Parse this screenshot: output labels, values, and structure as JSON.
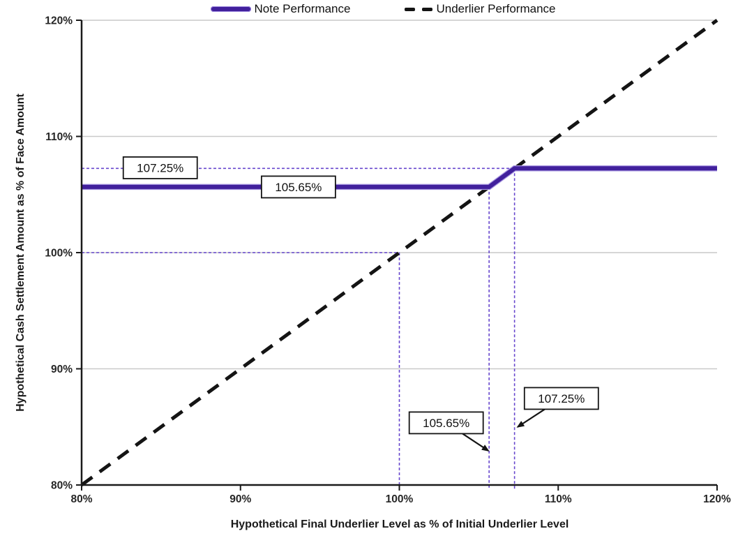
{
  "legend": {
    "items": [
      {
        "label": "Note Performance",
        "color": "#41209c",
        "style": "solid"
      },
      {
        "label": "Underlier Performance",
        "color": "#141414",
        "style": "dashed"
      }
    ]
  },
  "chart_data": {
    "type": "line",
    "title": "",
    "xlabel": "Hypothetical Final Underlier Level as % of Initial Underlier Level",
    "ylabel": "Hypothetical Cash Settlement Amount as % of Face Amount",
    "xlim": [
      80,
      120
    ],
    "ylim": [
      80,
      120
    ],
    "grid": "horizontal-only",
    "legend_position": "top",
    "grid_color": "#c9c9c9",
    "axis_color": "#1a1a1a",
    "reference_color": "#6746cd",
    "x_ticks": [
      {
        "value": 80,
        "label": "80%"
      },
      {
        "value": 90,
        "label": "90%"
      },
      {
        "value": 100,
        "label": "100%"
      },
      {
        "value": 110,
        "label": "110%"
      },
      {
        "value": 120,
        "label": "120%"
      }
    ],
    "y_ticks": [
      {
        "value": 80,
        "label": "80%"
      },
      {
        "value": 90,
        "label": "90%"
      },
      {
        "value": 100,
        "label": "100%"
      },
      {
        "value": 110,
        "label": "110%"
      },
      {
        "value": 120,
        "label": "120%"
      }
    ],
    "series": [
      {
        "name": "Note Performance",
        "color": "#41209c",
        "line_style": "solid",
        "width": 6,
        "points": [
          [
            80,
            105.65
          ],
          [
            105.65,
            105.65
          ],
          [
            107.25,
            107.25
          ],
          [
            120,
            107.25
          ]
        ]
      },
      {
        "name": "Underlier Performance",
        "color": "#141414",
        "line_style": "dashed",
        "width": 5,
        "points": [
          [
            80,
            80
          ],
          [
            120,
            120
          ]
        ]
      }
    ],
    "reference_lines": [
      {
        "orientation": "horizontal",
        "value": 107.25,
        "from": 80,
        "to": 107.25
      },
      {
        "orientation": "horizontal",
        "value": 100,
        "from": 80,
        "to": 100
      },
      {
        "orientation": "vertical",
        "value": 100,
        "from": 80,
        "to": 100
      },
      {
        "orientation": "vertical",
        "value": 105.65,
        "from": 80,
        "to": 105.65
      },
      {
        "orientation": "vertical",
        "value": 107.25,
        "from": 80,
        "to": 107.25
      }
    ],
    "annotations": [
      {
        "text": "107.25%",
        "x": 84.95,
        "y": 107.3
      },
      {
        "text": "105.65%",
        "x": 93.65,
        "y": 105.65
      },
      {
        "text": "105.65%",
        "x": 102.95,
        "y": 85.35,
        "arrow_to": {
          "x": 105.6,
          "y": 82.95
        }
      },
      {
        "text": "107.25%",
        "x": 110.2,
        "y": 87.45,
        "arrow_to": {
          "x": 107.45,
          "y": 85.0
        }
      }
    ]
  }
}
